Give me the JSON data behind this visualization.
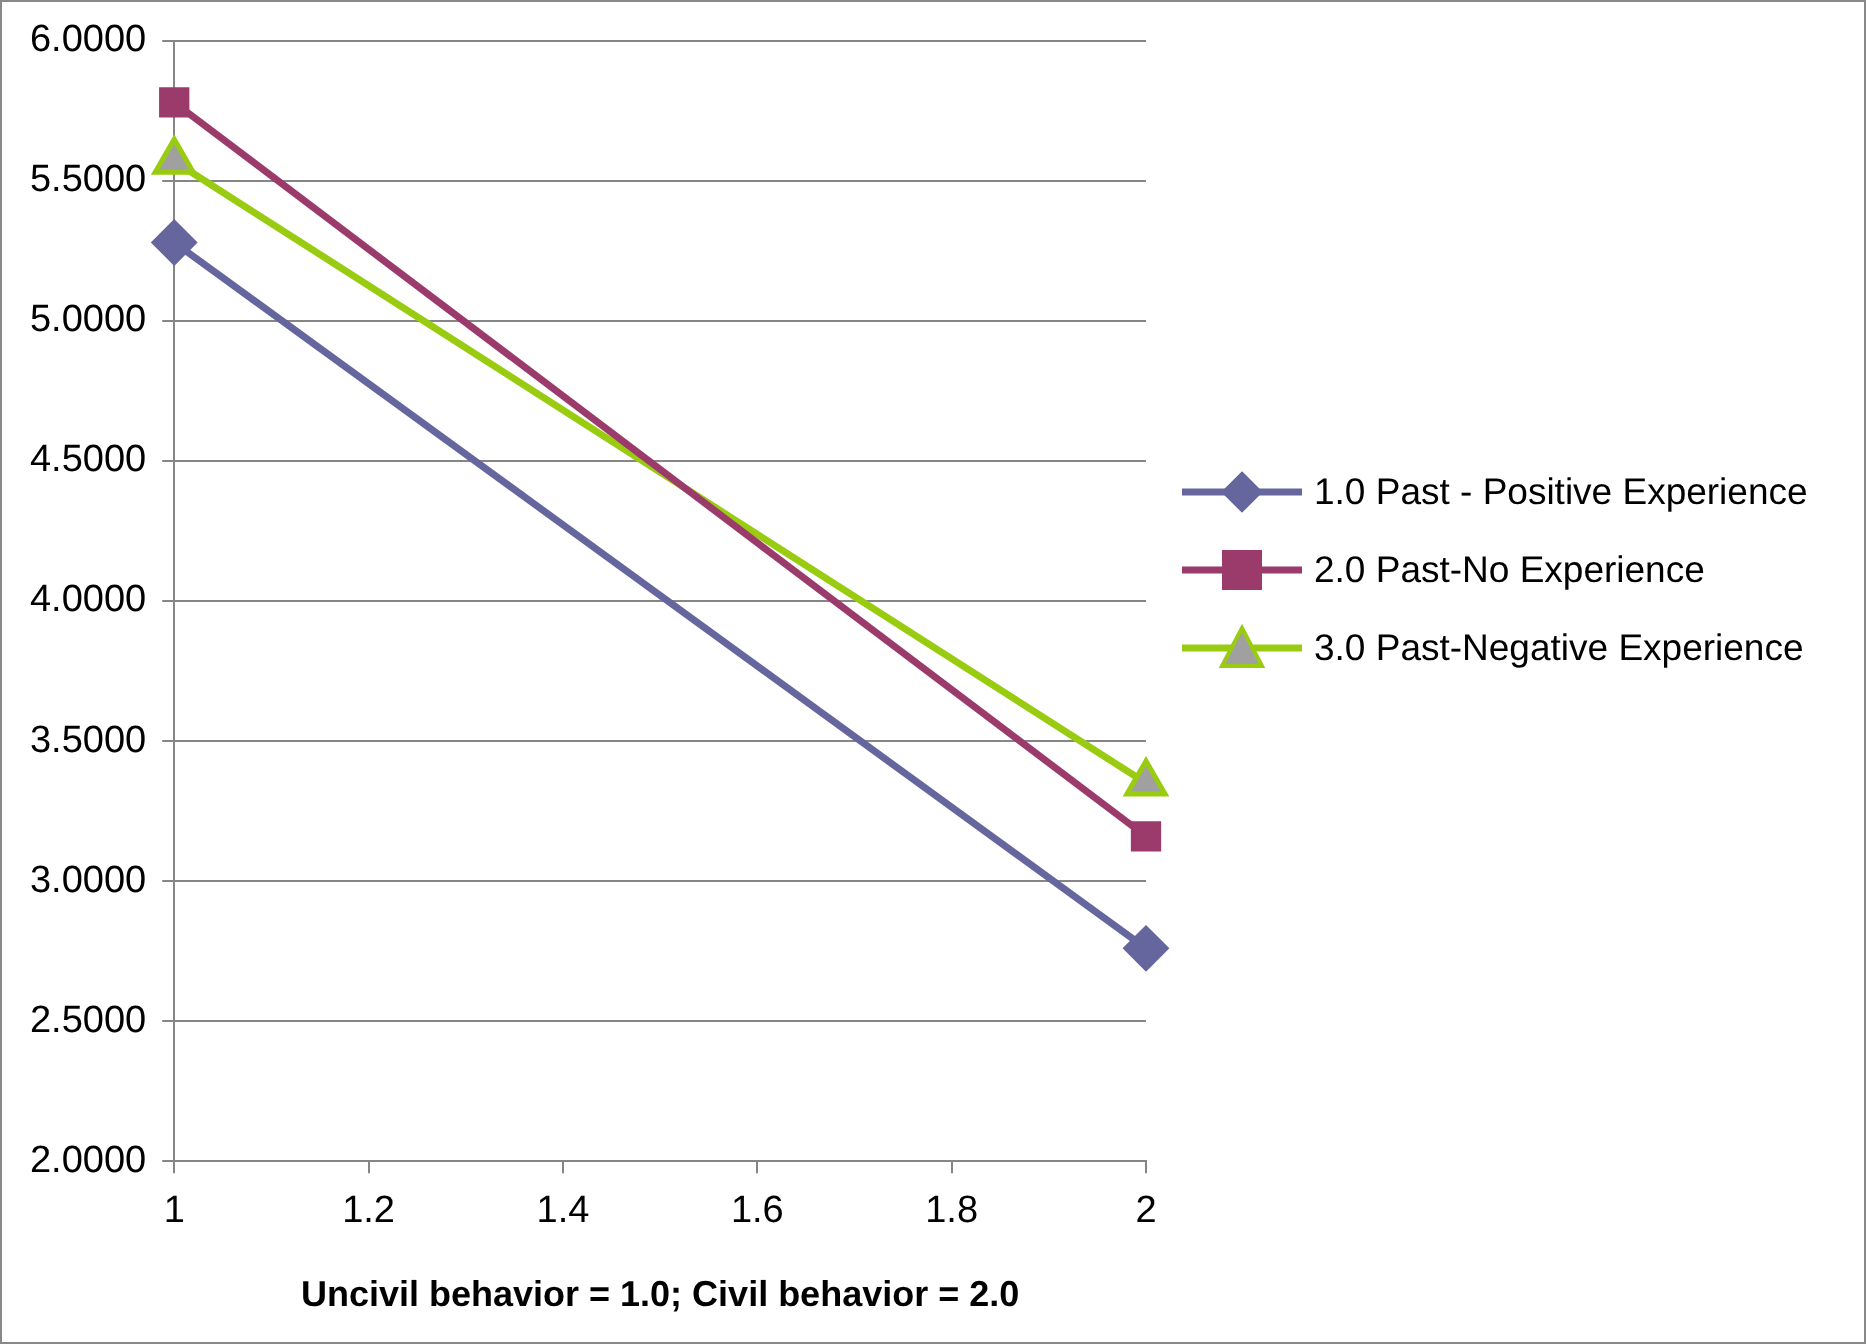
{
  "chart_data": {
    "type": "line",
    "xlabel": "Uncivil behavior = 1.0; Civil behavior = 2.0",
    "x": [
      1,
      2
    ],
    "series": [
      {
        "name": "1.0 Past - Positive Experience",
        "color": "#66669f",
        "marker": "diamond",
        "values": [
          5.28,
          2.76
        ]
      },
      {
        "name": "2.0 Past-No Experience",
        "color": "#9b3b6b",
        "marker": "square",
        "values": [
          5.78,
          3.16
        ]
      },
      {
        "name": "3.0 Past-Negative Experience",
        "color": "#99cc11",
        "marker": "triangle",
        "values": [
          5.57,
          3.35
        ]
      }
    ],
    "xlim": [
      1,
      2
    ],
    "xticks": [
      1,
      1.2,
      1.4,
      1.6,
      1.8,
      2
    ],
    "ylim": [
      2,
      6
    ],
    "yticks": [
      {
        "value": 2,
        "label": "2.0000"
      },
      {
        "value": 2.5,
        "label": "2.5000"
      },
      {
        "value": 3,
        "label": "3.0000"
      },
      {
        "value": 3.5,
        "label": "3.5000"
      },
      {
        "value": 4,
        "label": "4.0000"
      },
      {
        "value": 4.5,
        "label": "4.5000"
      },
      {
        "value": 5,
        "label": "5.0000"
      },
      {
        "value": 5.5,
        "label": "5.5000"
      },
      {
        "value": 6,
        "label": "6.0000"
      }
    ],
    "grid": "y",
    "legend": "right",
    "line_style": "solid"
  }
}
